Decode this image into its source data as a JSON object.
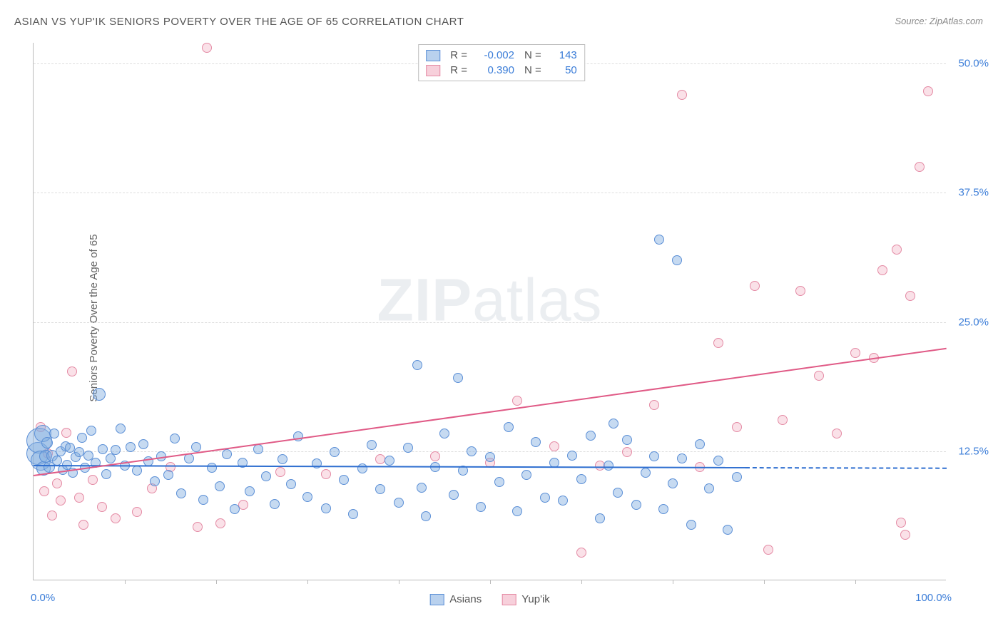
{
  "title": "ASIAN VS YUP'IK SENIORS POVERTY OVER THE AGE OF 65 CORRELATION CHART",
  "source": "Source: ZipAtlas.com",
  "y_axis_title": "Seniors Poverty Over the Age of 65",
  "watermark_bold": "ZIP",
  "watermark_rest": "atlas",
  "colors": {
    "blue_stroke": "#5b8fd6",
    "blue_fill": "rgba(128,172,224,0.45)",
    "pink_stroke": "#e48aa4",
    "pink_fill": "rgba(240,170,190,0.35)",
    "blue_line": "#2f6fd0",
    "pink_line": "#e05a86",
    "grid": "#dddddd",
    "axis": "#bbbbbb",
    "label_blue": "#3b7dd8",
    "text": "#555555"
  },
  "chart": {
    "type": "scatter",
    "xlim": [
      0,
      100
    ],
    "ylim": [
      0,
      52
    ],
    "y_ticks": [
      12.5,
      25.0,
      37.5,
      50.0
    ],
    "y_tick_labels": [
      "12.5%",
      "25.0%",
      "37.5%",
      "50.0%"
    ],
    "x_minor_ticks": [
      10,
      20,
      30,
      40,
      50,
      60,
      70,
      80,
      90
    ],
    "x_left_label": "0.0%",
    "x_right_label": "100.0%",
    "background_color": "#ffffff"
  },
  "legend_top": {
    "series": [
      {
        "swatch_fill": "rgba(128,172,224,0.55)",
        "swatch_border": "#5b8fd6",
        "r_label": "R =",
        "r_value": "-0.002",
        "n_label": "N =",
        "n_value": "143"
      },
      {
        "swatch_fill": "rgba(240,170,190,0.55)",
        "swatch_border": "#e48aa4",
        "r_label": "R =",
        "r_value": "0.390",
        "n_label": "N =",
        "n_value": "50"
      }
    ]
  },
  "legend_bottom": {
    "items": [
      {
        "swatch_fill": "rgba(128,172,224,0.55)",
        "swatch_border": "#5b8fd6",
        "label": "Asians"
      },
      {
        "swatch_fill": "rgba(240,170,190,0.55)",
        "swatch_border": "#e48aa4",
        "label": "Yup'ik"
      }
    ]
  },
  "trend_lines": {
    "blue": {
      "x1": 0,
      "y1": 11.2,
      "x2": 78,
      "y2": 11.0,
      "ext_to_x": 100,
      "ext_to_y": 10.95
    },
    "pink": {
      "x1": 0,
      "y1": 10.2,
      "x2": 100,
      "y2": 22.5,
      "ext": false
    }
  },
  "series_blue": [
    {
      "x": 0.5,
      "y": 12.3,
      "r": 16
    },
    {
      "x": 0.6,
      "y": 13.5,
      "r": 18
    },
    {
      "x": 0.8,
      "y": 11.6,
      "r": 14
    },
    {
      "x": 1.0,
      "y": 14.2,
      "r": 12
    },
    {
      "x": 1.1,
      "y": 10.8,
      "r": 10
    },
    {
      "x": 1.3,
      "y": 12.0,
      "r": 9
    },
    {
      "x": 1.5,
      "y": 13.3,
      "r": 8
    },
    {
      "x": 1.7,
      "y": 11.0,
      "r": 8
    },
    {
      "x": 2.0,
      "y": 12.1,
      "r": 8
    },
    {
      "x": 2.3,
      "y": 14.2,
      "r": 7
    },
    {
      "x": 2.6,
      "y": 11.6,
      "r": 7
    },
    {
      "x": 3.0,
      "y": 12.5,
      "r": 7
    },
    {
      "x": 3.2,
      "y": 10.7,
      "r": 7
    },
    {
      "x": 3.5,
      "y": 13.0,
      "r": 7
    },
    {
      "x": 3.7,
      "y": 11.2,
      "r": 7
    },
    {
      "x": 4.0,
      "y": 12.8,
      "r": 7
    },
    {
      "x": 4.3,
      "y": 10.4,
      "r": 7
    },
    {
      "x": 4.6,
      "y": 11.9,
      "r": 7
    },
    {
      "x": 5.0,
      "y": 12.4,
      "r": 7
    },
    {
      "x": 5.3,
      "y": 13.8,
      "r": 7
    },
    {
      "x": 5.6,
      "y": 10.9,
      "r": 7
    },
    {
      "x": 6.0,
      "y": 12.1,
      "r": 7
    },
    {
      "x": 6.3,
      "y": 14.5,
      "r": 7
    },
    {
      "x": 6.8,
      "y": 11.4,
      "r": 7
    },
    {
      "x": 7.2,
      "y": 18.0,
      "r": 9
    },
    {
      "x": 7.6,
      "y": 12.7,
      "r": 7
    },
    {
      "x": 8.0,
      "y": 10.3,
      "r": 7
    },
    {
      "x": 8.4,
      "y": 11.8,
      "r": 7
    },
    {
      "x": 9.0,
      "y": 12.6,
      "r": 7
    },
    {
      "x": 9.5,
      "y": 14.7,
      "r": 7
    },
    {
      "x": 10.0,
      "y": 11.1,
      "r": 7
    },
    {
      "x": 10.6,
      "y": 12.9,
      "r": 7
    },
    {
      "x": 11.3,
      "y": 10.6,
      "r": 7
    },
    {
      "x": 12.0,
      "y": 13.2,
      "r": 7
    },
    {
      "x": 12.6,
      "y": 11.5,
      "r": 7
    },
    {
      "x": 13.3,
      "y": 9.6,
      "r": 7
    },
    {
      "x": 14.0,
      "y": 12.0,
      "r": 7
    },
    {
      "x": 14.8,
      "y": 10.2,
      "r": 7
    },
    {
      "x": 15.5,
      "y": 13.7,
      "r": 7
    },
    {
      "x": 16.2,
      "y": 8.4,
      "r": 7
    },
    {
      "x": 17.0,
      "y": 11.8,
      "r": 7
    },
    {
      "x": 17.8,
      "y": 12.9,
      "r": 7
    },
    {
      "x": 18.6,
      "y": 7.8,
      "r": 7
    },
    {
      "x": 19.5,
      "y": 10.9,
      "r": 7
    },
    {
      "x": 20.4,
      "y": 9.1,
      "r": 7
    },
    {
      "x": 21.2,
      "y": 12.2,
      "r": 7
    },
    {
      "x": 22.0,
      "y": 6.9,
      "r": 7
    },
    {
      "x": 22.9,
      "y": 11.4,
      "r": 7
    },
    {
      "x": 23.7,
      "y": 8.6,
      "r": 7
    },
    {
      "x": 24.6,
      "y": 12.7,
      "r": 7
    },
    {
      "x": 25.5,
      "y": 10.1,
      "r": 7
    },
    {
      "x": 26.4,
      "y": 7.4,
      "r": 7
    },
    {
      "x": 27.3,
      "y": 11.7,
      "r": 7
    },
    {
      "x": 28.2,
      "y": 9.3,
      "r": 7
    },
    {
      "x": 29.0,
      "y": 13.9,
      "r": 7
    },
    {
      "x": 30.0,
      "y": 8.1,
      "r": 7
    },
    {
      "x": 31.0,
      "y": 11.3,
      "r": 7
    },
    {
      "x": 32.0,
      "y": 7.0,
      "r": 7
    },
    {
      "x": 33.0,
      "y": 12.4,
      "r": 7
    },
    {
      "x": 34.0,
      "y": 9.7,
      "r": 7
    },
    {
      "x": 35.0,
      "y": 6.4,
      "r": 7
    },
    {
      "x": 36.0,
      "y": 10.8,
      "r": 7
    },
    {
      "x": 37.0,
      "y": 13.1,
      "r": 7
    },
    {
      "x": 38.0,
      "y": 8.8,
      "r": 7
    },
    {
      "x": 39.0,
      "y": 11.6,
      "r": 7
    },
    {
      "x": 40.0,
      "y": 7.5,
      "r": 7
    },
    {
      "x": 41.0,
      "y": 12.8,
      "r": 7
    },
    {
      "x": 42.0,
      "y": 20.8,
      "r": 7
    },
    {
      "x": 42.5,
      "y": 9.0,
      "r": 7
    },
    {
      "x": 43.0,
      "y": 6.2,
      "r": 7
    },
    {
      "x": 44.0,
      "y": 11.0,
      "r": 7
    },
    {
      "x": 45.0,
      "y": 14.2,
      "r": 7
    },
    {
      "x": 46.0,
      "y": 8.3,
      "r": 7
    },
    {
      "x": 46.5,
      "y": 19.6,
      "r": 7
    },
    {
      "x": 47.0,
      "y": 10.6,
      "r": 7
    },
    {
      "x": 48.0,
      "y": 12.5,
      "r": 7
    },
    {
      "x": 49.0,
      "y": 7.1,
      "r": 7
    },
    {
      "x": 50.0,
      "y": 11.9,
      "r": 7
    },
    {
      "x": 51.0,
      "y": 9.5,
      "r": 7
    },
    {
      "x": 52.0,
      "y": 14.8,
      "r": 7
    },
    {
      "x": 53.0,
      "y": 6.7,
      "r": 7
    },
    {
      "x": 54.0,
      "y": 10.2,
      "r": 7
    },
    {
      "x": 55.0,
      "y": 13.4,
      "r": 7
    },
    {
      "x": 56.0,
      "y": 8.0,
      "r": 7
    },
    {
      "x": 57.0,
      "y": 11.4,
      "r": 7
    },
    {
      "x": 58.0,
      "y": 7.7,
      "r": 7
    },
    {
      "x": 59.0,
      "y": 12.1,
      "r": 7
    },
    {
      "x": 60.0,
      "y": 9.8,
      "r": 7
    },
    {
      "x": 61.0,
      "y": 14.0,
      "r": 7
    },
    {
      "x": 62.0,
      "y": 6.0,
      "r": 7
    },
    {
      "x": 63.0,
      "y": 11.1,
      "r": 7
    },
    {
      "x": 63.5,
      "y": 15.2,
      "r": 7
    },
    {
      "x": 64.0,
      "y": 8.5,
      "r": 7
    },
    {
      "x": 65.0,
      "y": 13.6,
      "r": 7
    },
    {
      "x": 66.0,
      "y": 7.3,
      "r": 7
    },
    {
      "x": 67.0,
      "y": 10.4,
      "r": 7
    },
    {
      "x": 68.0,
      "y": 12.0,
      "r": 7
    },
    {
      "x": 68.5,
      "y": 33.0,
      "r": 7
    },
    {
      "x": 69.0,
      "y": 6.9,
      "r": 7
    },
    {
      "x": 70.0,
      "y": 9.4,
      "r": 7
    },
    {
      "x": 70.5,
      "y": 31.0,
      "r": 7
    },
    {
      "x": 71.0,
      "y": 11.8,
      "r": 7
    },
    {
      "x": 72.0,
      "y": 5.4,
      "r": 7
    },
    {
      "x": 73.0,
      "y": 13.2,
      "r": 7
    },
    {
      "x": 74.0,
      "y": 8.9,
      "r": 7
    },
    {
      "x": 75.0,
      "y": 11.6,
      "r": 7
    },
    {
      "x": 76.0,
      "y": 4.9,
      "r": 7
    },
    {
      "x": 77.0,
      "y": 10.0,
      "r": 7
    }
  ],
  "series_pink": [
    {
      "x": 0.8,
      "y": 14.8,
      "r": 7
    },
    {
      "x": 1.2,
      "y": 8.6,
      "r": 7
    },
    {
      "x": 1.6,
      "y": 12.3,
      "r": 7
    },
    {
      "x": 2.0,
      "y": 6.3,
      "r": 7
    },
    {
      "x": 2.6,
      "y": 9.4,
      "r": 7
    },
    {
      "x": 3.0,
      "y": 7.7,
      "r": 7
    },
    {
      "x": 3.6,
      "y": 14.3,
      "r": 7
    },
    {
      "x": 4.2,
      "y": 20.2,
      "r": 7
    },
    {
      "x": 5.0,
      "y": 8.0,
      "r": 7
    },
    {
      "x": 5.5,
      "y": 5.4,
      "r": 7
    },
    {
      "x": 6.5,
      "y": 9.7,
      "r": 7
    },
    {
      "x": 7.5,
      "y": 7.1,
      "r": 7
    },
    {
      "x": 9.0,
      "y": 6.0,
      "r": 7
    },
    {
      "x": 11.3,
      "y": 6.6,
      "r": 7
    },
    {
      "x": 13.0,
      "y": 8.9,
      "r": 7
    },
    {
      "x": 15.0,
      "y": 11.0,
      "r": 7
    },
    {
      "x": 18.0,
      "y": 5.2,
      "r": 7
    },
    {
      "x": 19.0,
      "y": 51.5,
      "r": 7
    },
    {
      "x": 20.5,
      "y": 5.5,
      "r": 7
    },
    {
      "x": 23.0,
      "y": 7.3,
      "r": 7
    },
    {
      "x": 27.0,
      "y": 10.5,
      "r": 7
    },
    {
      "x": 32.0,
      "y": 10.3,
      "r": 7
    },
    {
      "x": 38.0,
      "y": 11.7,
      "r": 7
    },
    {
      "x": 44.0,
      "y": 12.0,
      "r": 7
    },
    {
      "x": 50.0,
      "y": 11.4,
      "r": 7
    },
    {
      "x": 53.0,
      "y": 17.4,
      "r": 7
    },
    {
      "x": 57.0,
      "y": 13.0,
      "r": 7
    },
    {
      "x": 60.0,
      "y": 2.7,
      "r": 7
    },
    {
      "x": 62.0,
      "y": 11.1,
      "r": 7
    },
    {
      "x": 65.0,
      "y": 12.4,
      "r": 7
    },
    {
      "x": 68.0,
      "y": 17.0,
      "r": 7
    },
    {
      "x": 71.0,
      "y": 47.0,
      "r": 7
    },
    {
      "x": 73.0,
      "y": 11.0,
      "r": 7
    },
    {
      "x": 75.0,
      "y": 23.0,
      "r": 7
    },
    {
      "x": 77.0,
      "y": 14.8,
      "r": 7
    },
    {
      "x": 79.0,
      "y": 28.5,
      "r": 7
    },
    {
      "x": 80.5,
      "y": 3.0,
      "r": 7
    },
    {
      "x": 82.0,
      "y": 15.5,
      "r": 7
    },
    {
      "x": 84.0,
      "y": 28.0,
      "r": 7
    },
    {
      "x": 86.0,
      "y": 19.8,
      "r": 7
    },
    {
      "x": 88.0,
      "y": 14.2,
      "r": 7
    },
    {
      "x": 90.0,
      "y": 22.0,
      "r": 7
    },
    {
      "x": 92.0,
      "y": 21.5,
      "r": 7
    },
    {
      "x": 93.0,
      "y": 30.0,
      "r": 7
    },
    {
      "x": 94.5,
      "y": 32.0,
      "r": 7
    },
    {
      "x": 95.0,
      "y": 5.6,
      "r": 7
    },
    {
      "x": 95.5,
      "y": 4.4,
      "r": 7
    },
    {
      "x": 96.0,
      "y": 27.5,
      "r": 7
    },
    {
      "x": 97.0,
      "y": 40.0,
      "r": 7
    },
    {
      "x": 98.0,
      "y": 47.3,
      "r": 7
    }
  ]
}
